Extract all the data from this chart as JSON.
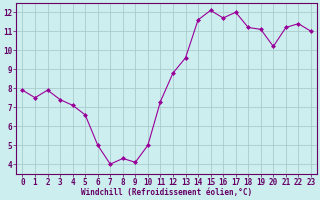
{
  "x": [
    0,
    1,
    2,
    3,
    4,
    5,
    6,
    7,
    8,
    9,
    10,
    11,
    12,
    13,
    14,
    15,
    16,
    17,
    18,
    19,
    20,
    21,
    22,
    23
  ],
  "y": [
    7.9,
    7.5,
    7.9,
    7.4,
    7.1,
    6.6,
    5.0,
    4.0,
    4.3,
    4.1,
    5.0,
    7.3,
    8.8,
    9.6,
    11.6,
    12.1,
    11.7,
    12.0,
    11.2,
    11.1,
    10.2,
    11.2,
    11.4,
    11.0
  ],
  "line_color": "#990099",
  "marker": "D",
  "marker_size": 2.0,
  "bg_color": "#cceeee",
  "grid_color": "#aacccc",
  "xlabel": "Windchill (Refroidissement éolien,°C)",
  "xlabel_color": "#660066",
  "tick_color": "#660066",
  "axis_color": "#660066",
  "xlim": [
    -0.5,
    23.5
  ],
  "ylim": [
    3.5,
    12.5
  ],
  "yticks": [
    4,
    5,
    6,
    7,
    8,
    9,
    10,
    11,
    12
  ],
  "xticks": [
    0,
    1,
    2,
    3,
    4,
    5,
    6,
    7,
    8,
    9,
    10,
    11,
    12,
    13,
    14,
    15,
    16,
    17,
    18,
    19,
    20,
    21,
    22,
    23
  ],
  "xlabel_fontsize": 5.5,
  "tick_fontsize": 5.5,
  "linewidth": 0.8
}
